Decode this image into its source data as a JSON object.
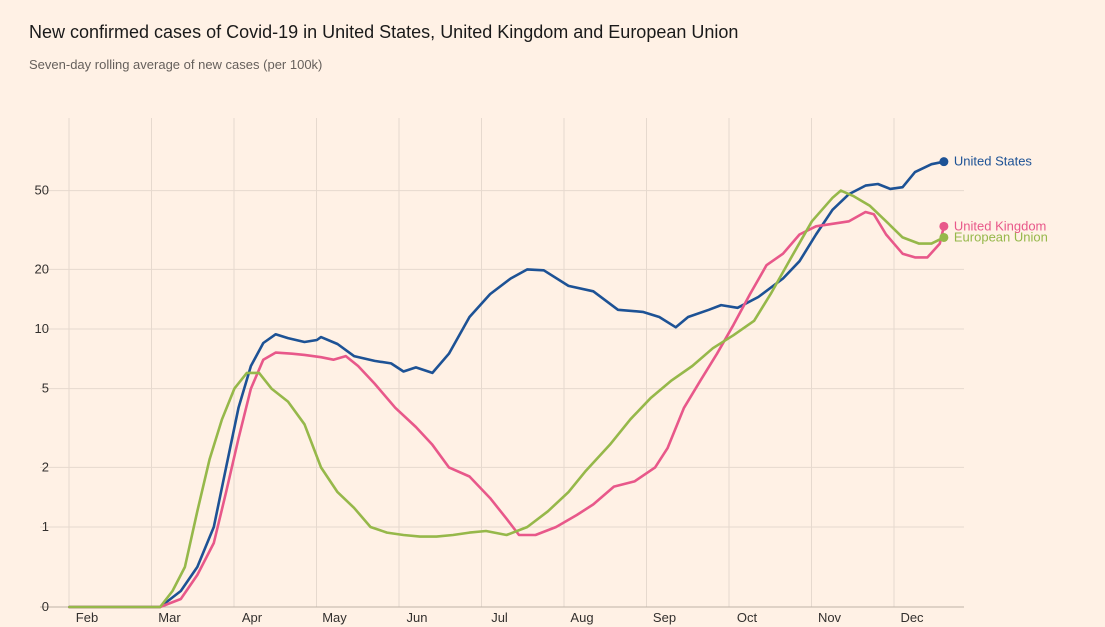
{
  "chart_data": {
    "type": "line",
    "title": "New confirmed cases of Covid-19 in United States, United Kingdom and European Union",
    "subtitle": "Seven-day rolling average of new cases (per 100k)",
    "y_scale": "log",
    "y_ticks": [
      0,
      1,
      2,
      5,
      10,
      20,
      50
    ],
    "x_ticks": [
      "Feb",
      "Mar",
      "Apr",
      "May",
      "Jun",
      "Jul",
      "Aug",
      "Sep",
      "Oct",
      "Nov",
      "Dec"
    ],
    "grid": true,
    "legend": "end-of-line labels",
    "series": [
      {
        "name": "United States",
        "color": "#1d5295",
        "points": [
          [
            0.75,
            0
          ],
          [
            1,
            0
          ],
          [
            1.3,
            0
          ],
          [
            1.6,
            0
          ],
          [
            1.85,
            0
          ],
          [
            2.1,
            0.2
          ],
          [
            2.3,
            0.5
          ],
          [
            2.5,
            1.0
          ],
          [
            2.65,
            2.0
          ],
          [
            2.8,
            4.0
          ],
          [
            2.95,
            6.5
          ],
          [
            3.1,
            8.5
          ],
          [
            3.25,
            9.4
          ],
          [
            3.4,
            9.0
          ],
          [
            3.6,
            8.6
          ],
          [
            3.75,
            8.8
          ],
          [
            3.8,
            9.1
          ],
          [
            4.0,
            8.4
          ],
          [
            4.2,
            7.3
          ],
          [
            4.45,
            6.9
          ],
          [
            4.65,
            6.7
          ],
          [
            4.8,
            6.1
          ],
          [
            4.95,
            6.4
          ],
          [
            5.15,
            6.0
          ],
          [
            5.35,
            7.5
          ],
          [
            5.6,
            11.5
          ],
          [
            5.85,
            15
          ],
          [
            6.1,
            18
          ],
          [
            6.3,
            20
          ],
          [
            6.5,
            19.8
          ],
          [
            6.8,
            16.5
          ],
          [
            7.1,
            15.5
          ],
          [
            7.4,
            12.5
          ],
          [
            7.7,
            12.2
          ],
          [
            7.9,
            11.5
          ],
          [
            8.1,
            10.2
          ],
          [
            8.25,
            11.5
          ],
          [
            8.5,
            12.5
          ],
          [
            8.65,
            13.2
          ],
          [
            8.85,
            12.8
          ],
          [
            9.1,
            14.5
          ],
          [
            9.4,
            18
          ],
          [
            9.6,
            22
          ],
          [
            9.8,
            30
          ],
          [
            10.0,
            40
          ],
          [
            10.2,
            48
          ],
          [
            10.4,
            53
          ],
          [
            10.55,
            54
          ],
          [
            10.7,
            51
          ],
          [
            10.85,
            52
          ],
          [
            11.0,
            62
          ],
          [
            11.2,
            68
          ],
          [
            11.35,
            70
          ]
        ]
      },
      {
        "name": "United Kingdom",
        "color": "#e8588a",
        "points": [
          [
            0.75,
            0
          ],
          [
            1,
            0
          ],
          [
            1.3,
            0
          ],
          [
            1.6,
            0
          ],
          [
            1.85,
            0
          ],
          [
            2.1,
            0.1
          ],
          [
            2.3,
            0.4
          ],
          [
            2.5,
            0.8
          ],
          [
            2.65,
            1.5
          ],
          [
            2.8,
            2.8
          ],
          [
            2.95,
            5
          ],
          [
            3.1,
            7
          ],
          [
            3.25,
            7.6
          ],
          [
            3.45,
            7.5
          ],
          [
            3.6,
            7.4
          ],
          [
            3.8,
            7.2
          ],
          [
            3.95,
            7.0
          ],
          [
            4.1,
            7.3
          ],
          [
            4.25,
            6.5
          ],
          [
            4.45,
            5.3
          ],
          [
            4.7,
            4.0
          ],
          [
            4.95,
            3.2
          ],
          [
            5.15,
            2.6
          ],
          [
            5.35,
            2.0
          ],
          [
            5.6,
            1.8
          ],
          [
            5.85,
            1.4
          ],
          [
            6.05,
            1.1
          ],
          [
            6.2,
            0.9
          ],
          [
            6.4,
            0.9
          ],
          [
            6.65,
            1.0
          ],
          [
            6.9,
            1.15
          ],
          [
            7.1,
            1.3
          ],
          [
            7.35,
            1.6
          ],
          [
            7.6,
            1.7
          ],
          [
            7.85,
            2.0
          ],
          [
            8.0,
            2.5
          ],
          [
            8.2,
            4.0
          ],
          [
            8.4,
            5.5
          ],
          [
            8.6,
            7.5
          ],
          [
            8.8,
            10.5
          ],
          [
            9.0,
            15
          ],
          [
            9.2,
            21
          ],
          [
            9.4,
            24
          ],
          [
            9.6,
            30
          ],
          [
            9.8,
            33
          ],
          [
            10.0,
            34
          ],
          [
            10.2,
            35
          ],
          [
            10.4,
            39
          ],
          [
            10.5,
            38
          ],
          [
            10.65,
            30
          ],
          [
            10.85,
            24
          ],
          [
            11.0,
            23
          ],
          [
            11.15,
            23
          ],
          [
            11.3,
            27
          ],
          [
            11.35,
            33
          ]
        ]
      },
      {
        "name": "European Union",
        "color": "#96b84a",
        "points": [
          [
            0.75,
            0
          ],
          [
            1,
            0
          ],
          [
            1.3,
            0
          ],
          [
            1.6,
            0
          ],
          [
            1.85,
            0
          ],
          [
            2.0,
            0.2
          ],
          [
            2.15,
            0.5
          ],
          [
            2.3,
            1.2
          ],
          [
            2.45,
            2.2
          ],
          [
            2.6,
            3.5
          ],
          [
            2.75,
            5
          ],
          [
            2.9,
            6.0
          ],
          [
            3.05,
            6.0
          ],
          [
            3.2,
            5.0
          ],
          [
            3.4,
            4.3
          ],
          [
            3.6,
            3.3
          ],
          [
            3.8,
            2.0
          ],
          [
            4.0,
            1.5
          ],
          [
            4.2,
            1.25
          ],
          [
            4.4,
            1.0
          ],
          [
            4.6,
            0.93
          ],
          [
            4.8,
            0.9
          ],
          [
            5.0,
            0.88
          ],
          [
            5.2,
            0.88
          ],
          [
            5.4,
            0.9
          ],
          [
            5.6,
            0.93
          ],
          [
            5.8,
            0.95
          ],
          [
            6.05,
            0.9
          ],
          [
            6.3,
            1.0
          ],
          [
            6.55,
            1.2
          ],
          [
            6.8,
            1.5
          ],
          [
            7.0,
            1.9
          ],
          [
            7.3,
            2.6
          ],
          [
            7.55,
            3.5
          ],
          [
            7.8,
            4.5
          ],
          [
            8.05,
            5.5
          ],
          [
            8.3,
            6.5
          ],
          [
            8.55,
            8.0
          ],
          [
            8.8,
            9.3
          ],
          [
            9.05,
            11
          ],
          [
            9.25,
            15
          ],
          [
            9.5,
            23
          ],
          [
            9.75,
            35
          ],
          [
            10.0,
            46
          ],
          [
            10.1,
            50
          ],
          [
            10.25,
            47
          ],
          [
            10.45,
            42
          ],
          [
            10.65,
            35
          ],
          [
            10.85,
            29
          ],
          [
            11.05,
            27
          ],
          [
            11.2,
            27
          ],
          [
            11.35,
            29
          ]
        ]
      }
    ]
  }
}
